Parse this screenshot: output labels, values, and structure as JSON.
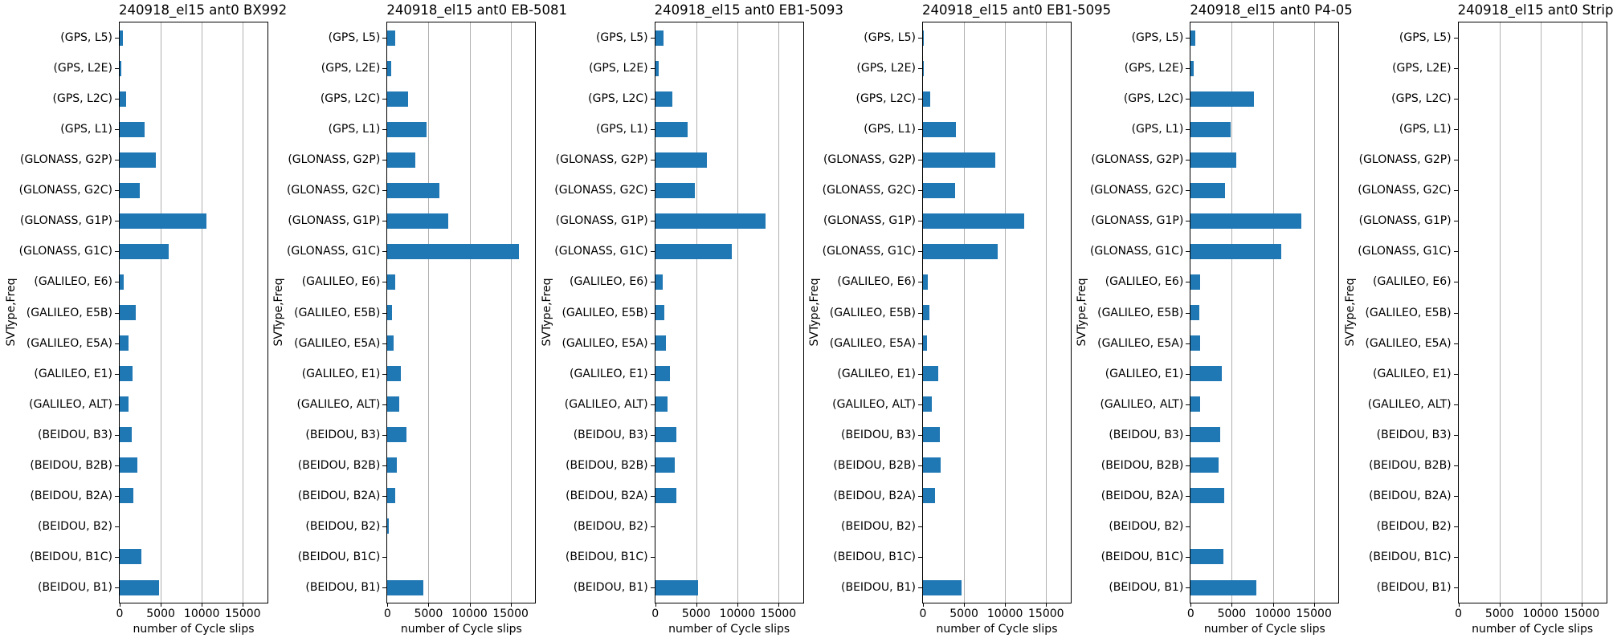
{
  "figure": {
    "background": "#ffffff",
    "bar_color": "#1f77b4",
    "grid_color": "#b0b0b0",
    "axis_color": "#000000"
  },
  "shared": {
    "ylabel": "SVType,Freq",
    "xlabel": "number of Cycle slips",
    "xticks": [
      0,
      5000,
      10000,
      15000
    ],
    "xlim": [
      0,
      18000
    ],
    "categories": [
      "(GPS, L5)",
      "(GPS, L2E)",
      "(GPS, L2C)",
      "(GPS, L1)",
      "(GLONASS, G2P)",
      "(GLONASS, G2C)",
      "(GLONASS, G1P)",
      "(GLONASS, G1C)",
      "(GALILEO, E6)",
      "(GALILEO, E5B)",
      "(GALILEO, E5A)",
      "(GALILEO, E1)",
      "(GALILEO, ALT)",
      "(BEIDOU, B3)",
      "(BEIDOU, B2B)",
      "(BEIDOU, B2A)",
      "(BEIDOU, B2)",
      "(BEIDOU, B1C)",
      "(BEIDOU, B1)"
    ]
  },
  "chart_data": [
    {
      "type": "bar",
      "orientation": "horizontal",
      "grid": true,
      "legend": false,
      "title": "240918_el15 ant0 BX992",
      "values": [
        400,
        200,
        800,
        3000,
        4400,
        2400,
        10600,
        6000,
        500,
        2000,
        1100,
        1600,
        1100,
        1500,
        2100,
        1650,
        0,
        2650,
        4800
      ]
    },
    {
      "type": "bar",
      "orientation": "horizontal",
      "grid": true,
      "legend": false,
      "title": "240918_el15 ant0 EB-5081",
      "values": [
        900,
        500,
        2500,
        4800,
        3400,
        6300,
        7400,
        16000,
        900,
        600,
        700,
        1600,
        1400,
        2300,
        1100,
        900,
        150,
        0,
        4400
      ]
    },
    {
      "type": "bar",
      "orientation": "horizontal",
      "grid": true,
      "legend": false,
      "title": "240918_el15 ant0 EB1-5093",
      "values": [
        1050,
        400,
        2100,
        3950,
        6250,
        4800,
        13400,
        9350,
        900,
        1150,
        1350,
        1750,
        1550,
        2600,
        2400,
        2600,
        0,
        0,
        5200
      ]
    },
    {
      "type": "bar",
      "orientation": "horizontal",
      "grid": true,
      "legend": false,
      "title": "240918_el15 ant0 EB1-5095",
      "values": [
        150,
        150,
        900,
        4000,
        8800,
        3900,
        12300,
        9100,
        600,
        800,
        500,
        1900,
        1100,
        2050,
        2150,
        1500,
        0,
        0,
        4700
      ]
    },
    {
      "type": "bar",
      "orientation": "horizontal",
      "grid": true,
      "legend": false,
      "title": "240918_el15 ant0 P4-05",
      "values": [
        600,
        400,
        7700,
        4900,
        5500,
        4200,
        13500,
        11000,
        1100,
        1050,
        1150,
        3800,
        1150,
        3600,
        3400,
        4100,
        0,
        4000,
        8000
      ]
    },
    {
      "type": "bar",
      "orientation": "horizontal",
      "grid": true,
      "legend": false,
      "title": "240918_el15 ant0 Strip",
      "values": [
        0,
        0,
        0,
        0,
        0,
        0,
        0,
        0,
        0,
        0,
        0,
        0,
        0,
        0,
        0,
        0,
        0,
        0,
        0
      ]
    }
  ]
}
